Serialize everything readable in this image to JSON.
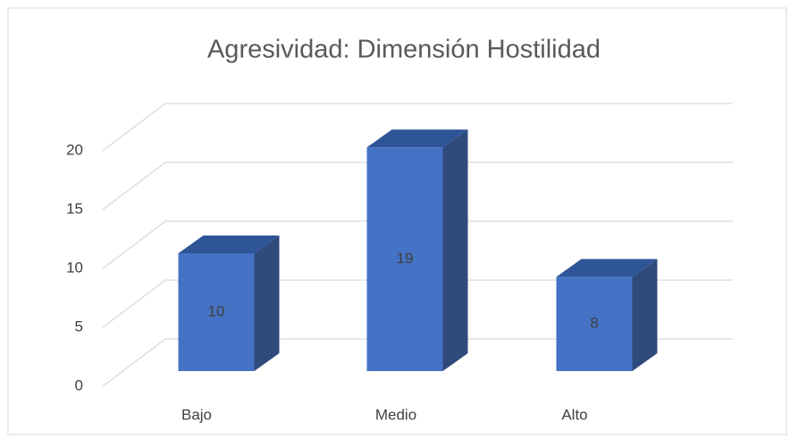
{
  "chart_data": {
    "type": "bar",
    "title": "Agresividad: Dimensión Hostilidad",
    "categories": [
      "Bajo",
      "Medio",
      "Alto"
    ],
    "values": [
      10,
      19,
      8
    ],
    "color": "#4472c4",
    "ylim": [
      0,
      20
    ],
    "yticks": [
      0,
      5,
      10,
      15,
      20
    ],
    "grid": true
  }
}
